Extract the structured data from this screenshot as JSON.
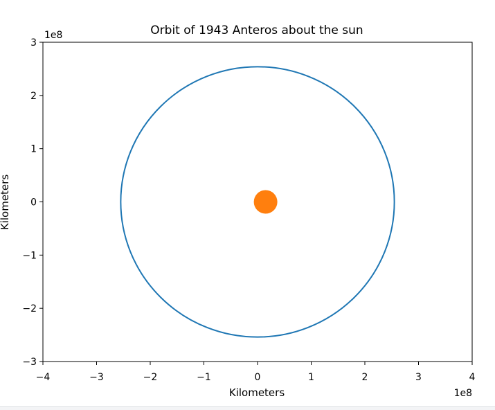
{
  "chart_data": {
    "type": "line",
    "title": "Orbit of 1943 Anteros about the sun",
    "xlabel": "Kilometers",
    "ylabel": "Kilometers",
    "xlim": [
      -400000000.0,
      400000000.0
    ],
    "ylim": [
      -300000000.0,
      300000000.0
    ],
    "x_offset_label": "1e8",
    "y_offset_label": "1e8",
    "x_ticks": [
      {
        "value": -400000000.0,
        "label": "−4"
      },
      {
        "value": -300000000.0,
        "label": "−3"
      },
      {
        "value": -200000000.0,
        "label": "−2"
      },
      {
        "value": -100000000.0,
        "label": "−1"
      },
      {
        "value": 0,
        "label": "0"
      },
      {
        "value": 100000000.0,
        "label": "1"
      },
      {
        "value": 200000000.0,
        "label": "2"
      },
      {
        "value": 300000000.0,
        "label": "3"
      },
      {
        "value": 400000000.0,
        "label": "4"
      }
    ],
    "y_ticks": [
      {
        "value": -300000000.0,
        "label": "−3"
      },
      {
        "value": -200000000.0,
        "label": "−2"
      },
      {
        "value": -100000000.0,
        "label": "−1"
      },
      {
        "value": 0,
        "label": "0"
      },
      {
        "value": 100000000.0,
        "label": "1"
      },
      {
        "value": 200000000.0,
        "label": "2"
      },
      {
        "value": 300000000.0,
        "label": "3"
      }
    ],
    "grid": false,
    "series": [
      {
        "kind": "orbit",
        "color": "#1f77b4",
        "center_x": 0,
        "center_y": 0,
        "radius_x": 255000000.0,
        "radius_y": 254000000.0
      },
      {
        "kind": "sun",
        "color": "#ff7f0e",
        "x": 15000000.0,
        "y": 0
      }
    ]
  }
}
